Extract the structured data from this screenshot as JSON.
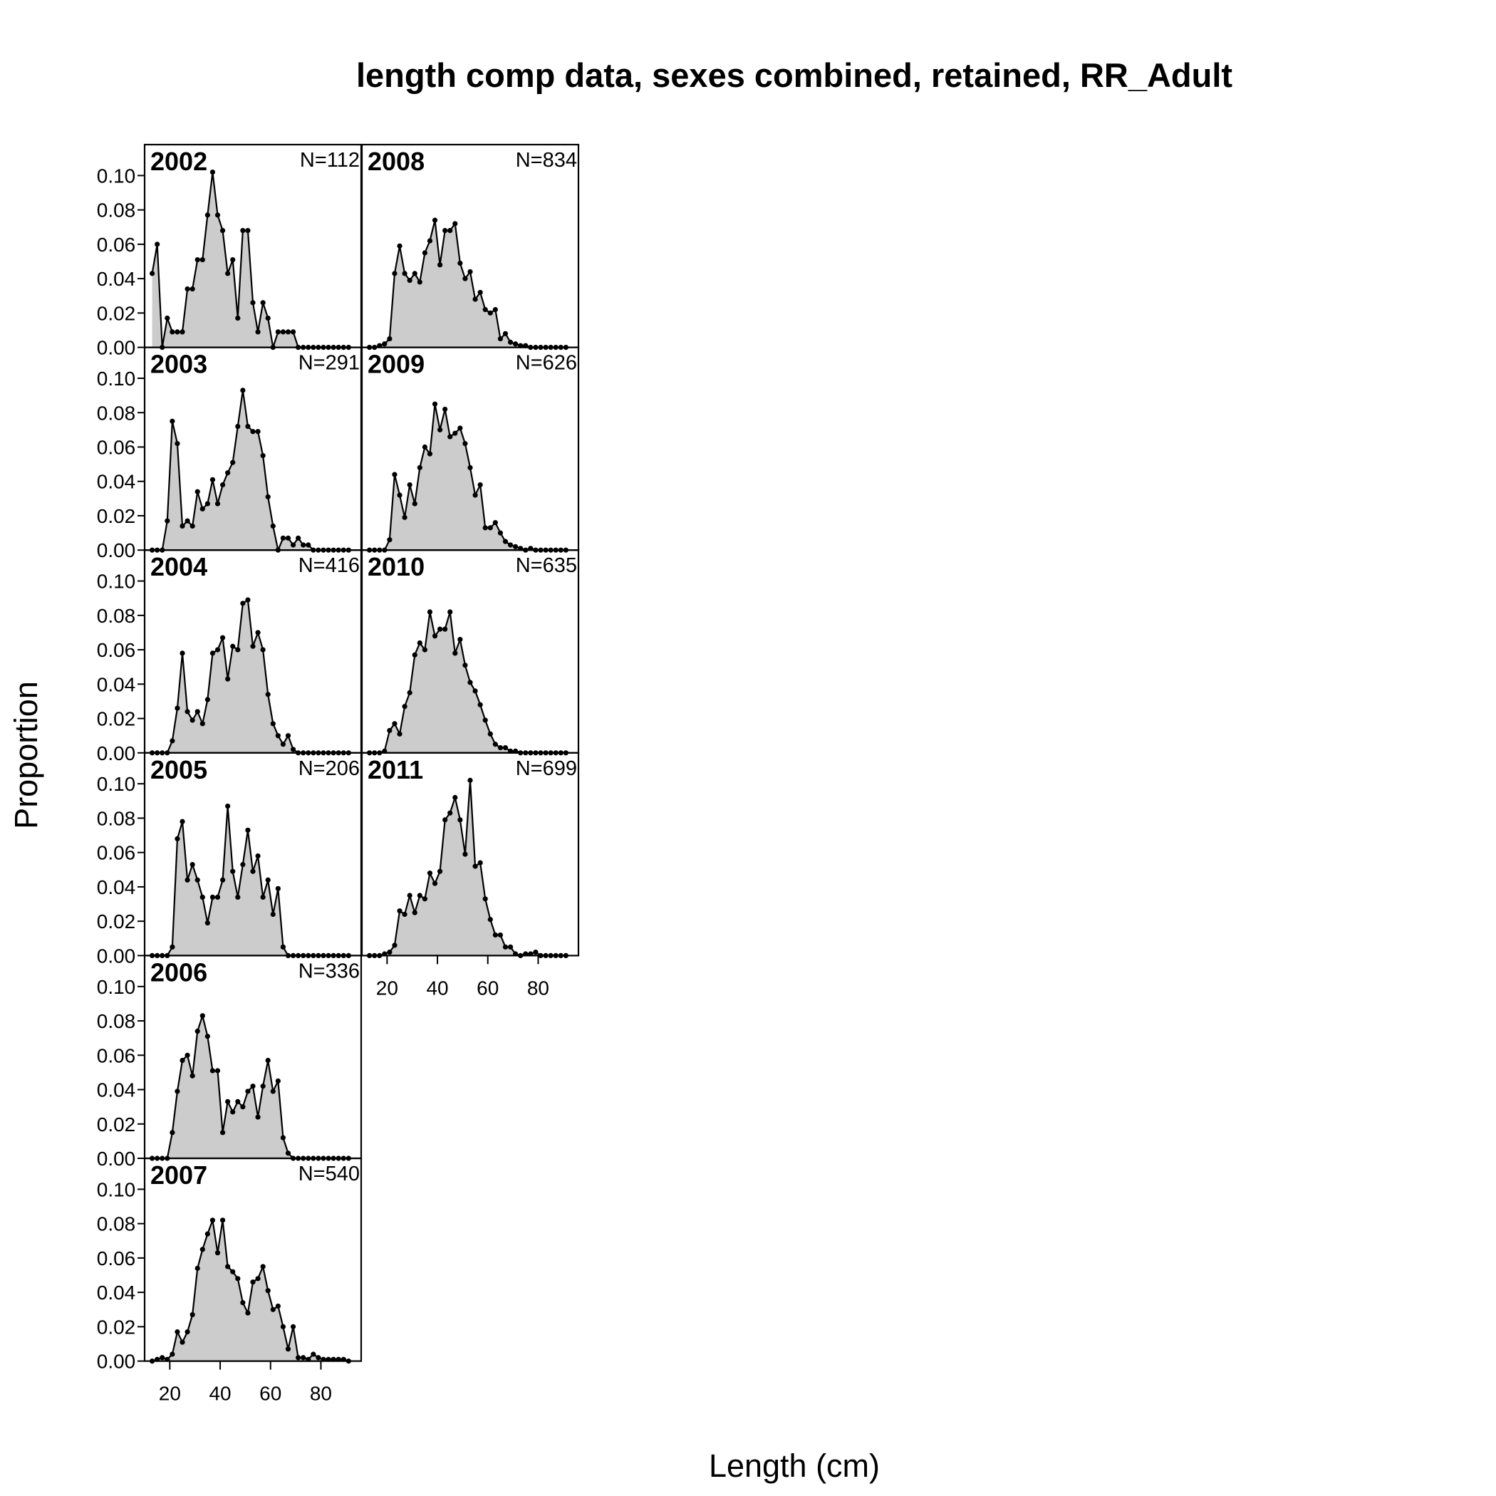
{
  "title": "length comp data, sexes combined, retained, RR_Adult",
  "xlabel": "Length (cm)",
  "ylabel": "Proportion",
  "chart_data": {
    "type": "area",
    "title": "length comp data, sexes combined, retained, RR_Adult",
    "xlabel": "Length (cm)",
    "ylabel": "Proportion",
    "xlim": [
      10,
      96
    ],
    "ylim": [
      0,
      0.118
    ],
    "x_ticks": [
      20,
      40,
      60,
      80
    ],
    "y_ticks": [
      "0.00",
      "0.02",
      "0.04",
      "0.06",
      "0.08",
      "0.10"
    ],
    "fill_color": "#cccccc",
    "line_color": "#000000",
    "x": [
      13,
      15,
      17,
      19,
      21,
      23,
      25,
      27,
      29,
      31,
      33,
      35,
      37,
      39,
      41,
      43,
      45,
      47,
      49,
      51,
      53,
      55,
      57,
      59,
      61,
      63,
      65,
      67,
      69,
      71,
      73,
      75,
      77,
      79,
      81,
      83,
      85,
      87,
      89,
      91
    ],
    "panels": [
      {
        "year": "2002",
        "n_label": "N=112",
        "values": [
          0.043,
          0.06,
          0,
          0.017,
          0.009,
          0.009,
          0.009,
          0.034,
          0.034,
          0.051,
          0.051,
          0.077,
          0.102,
          0.077,
          0.068,
          0.043,
          0.051,
          0.017,
          0.068,
          0.068,
          0.026,
          0.009,
          0.026,
          0.017,
          0,
          0.009,
          0.009,
          0.009,
          0.009,
          0,
          0,
          0,
          0,
          0,
          0,
          0,
          0,
          0,
          0,
          0
        ]
      },
      {
        "year": "2003",
        "n_label": "N=291",
        "values": [
          0,
          0,
          0,
          0.017,
          0.075,
          0.062,
          0.014,
          0.017,
          0.014,
          0.034,
          0.024,
          0.027,
          0.041,
          0.027,
          0.038,
          0.045,
          0.051,
          0.072,
          0.093,
          0.072,
          0.069,
          0.069,
          0.055,
          0.031,
          0.014,
          0,
          0.007,
          0.007,
          0.003,
          0.007,
          0.003,
          0.003,
          0,
          0,
          0,
          0,
          0,
          0,
          0,
          0
        ]
      },
      {
        "year": "2004",
        "n_label": "N=416",
        "values": [
          0,
          0,
          0,
          0,
          0.007,
          0.026,
          0.058,
          0.024,
          0.019,
          0.024,
          0.017,
          0.031,
          0.058,
          0.06,
          0.067,
          0.043,
          0.062,
          0.06,
          0.087,
          0.089,
          0.062,
          0.07,
          0.06,
          0.034,
          0.017,
          0.01,
          0.005,
          0.01,
          0.002,
          0,
          0,
          0,
          0,
          0,
          0,
          0,
          0,
          0,
          0,
          0
        ]
      },
      {
        "year": "2005",
        "n_label": "N=206",
        "values": [
          0,
          0,
          0,
          0,
          0.005,
          0.068,
          0.078,
          0.044,
          0.053,
          0.044,
          0.034,
          0.019,
          0.034,
          0.034,
          0.044,
          0.087,
          0.049,
          0.034,
          0.053,
          0.073,
          0.049,
          0.058,
          0.034,
          0.044,
          0.024,
          0.039,
          0.005,
          0,
          0,
          0,
          0,
          0,
          0,
          0,
          0,
          0,
          0,
          0,
          0,
          0
        ]
      },
      {
        "year": "2006",
        "n_label": "N=336",
        "values": [
          0,
          0,
          0,
          0,
          0.015,
          0.039,
          0.057,
          0.06,
          0.048,
          0.074,
          0.083,
          0.071,
          0.051,
          0.051,
          0.015,
          0.033,
          0.027,
          0.033,
          0.03,
          0.039,
          0.042,
          0.024,
          0.042,
          0.057,
          0.039,
          0.045,
          0.012,
          0.003,
          0,
          0,
          0,
          0,
          0,
          0,
          0,
          0,
          0,
          0,
          0,
          0
        ]
      },
      {
        "year": "2007",
        "n_label": "N=540",
        "values": [
          0,
          0.001,
          0.002,
          0.001,
          0.004,
          0.017,
          0.011,
          0.017,
          0.027,
          0.054,
          0.065,
          0.074,
          0.082,
          0.063,
          0.082,
          0.055,
          0.052,
          0.048,
          0.034,
          0.028,
          0.046,
          0.048,
          0.055,
          0.041,
          0.03,
          0.032,
          0.02,
          0.007,
          0.02,
          0.002,
          0.002,
          0.001,
          0.004,
          0.002,
          0.001,
          0.001,
          0.001,
          0.001,
          0.001,
          0
        ]
      },
      {
        "year": "2008",
        "n_label": "N=834",
        "values": [
          0,
          0,
          0.001,
          0.002,
          0.005,
          0.043,
          0.059,
          0.043,
          0.039,
          0.043,
          0.038,
          0.055,
          0.062,
          0.074,
          0.048,
          0.068,
          0.068,
          0.072,
          0.049,
          0.04,
          0.044,
          0.028,
          0.032,
          0.022,
          0.02,
          0.022,
          0.005,
          0.008,
          0.003,
          0.002,
          0.001,
          0.001,
          0,
          0,
          0,
          0,
          0,
          0,
          0,
          0
        ]
      },
      {
        "year": "2009",
        "n_label": "N=626",
        "values": [
          0,
          0,
          0,
          0,
          0.006,
          0.044,
          0.032,
          0.019,
          0.038,
          0.027,
          0.048,
          0.06,
          0.056,
          0.085,
          0.07,
          0.082,
          0.066,
          0.068,
          0.071,
          0.062,
          0.048,
          0.032,
          0.038,
          0.013,
          0.013,
          0.016,
          0.01,
          0.005,
          0.003,
          0.002,
          0.001,
          0,
          0.001,
          0,
          0,
          0,
          0,
          0,
          0,
          0
        ]
      },
      {
        "year": "2010",
        "n_label": "N=635",
        "values": [
          0,
          0,
          0,
          0.001,
          0.013,
          0.017,
          0.011,
          0.027,
          0.035,
          0.057,
          0.064,
          0.06,
          0.082,
          0.068,
          0.072,
          0.072,
          0.082,
          0.058,
          0.066,
          0.051,
          0.041,
          0.036,
          0.028,
          0.019,
          0.011,
          0.005,
          0.003,
          0.003,
          0.001,
          0.001,
          0,
          0,
          0,
          0,
          0,
          0,
          0,
          0,
          0,
          0
        ]
      },
      {
        "year": "2011",
        "n_label": "N=699",
        "values": [
          0,
          0,
          0,
          0.001,
          0.002,
          0.006,
          0.026,
          0.024,
          0.035,
          0.025,
          0.035,
          0.033,
          0.048,
          0.042,
          0.049,
          0.079,
          0.083,
          0.092,
          0.079,
          0.059,
          0.102,
          0.052,
          0.054,
          0.033,
          0.021,
          0.012,
          0.012,
          0.005,
          0.005,
          0.001,
          0,
          0.001,
          0.001,
          0.002,
          0,
          0,
          0,
          0,
          0,
          0
        ]
      }
    ]
  }
}
